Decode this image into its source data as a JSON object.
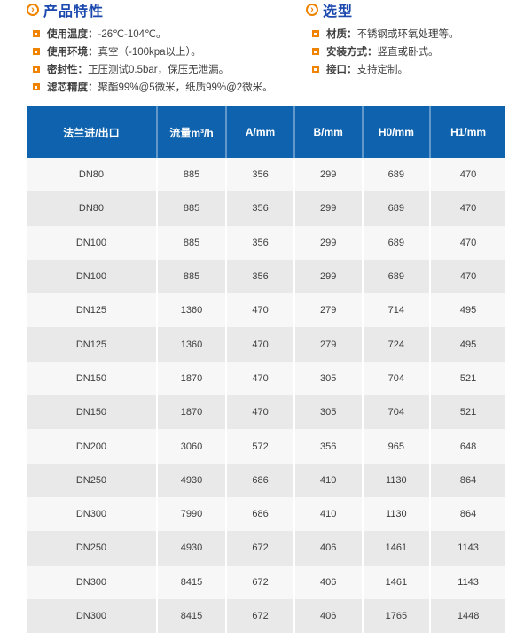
{
  "colors": {
    "accent_orange": "#f08300",
    "title_blue": "#1b49ae",
    "table_header_blue": "#0f62ad",
    "row_light": "#f7f7f7",
    "row_gray": "#e9e9e9",
    "body_text": "#404040"
  },
  "sections": [
    {
      "title": "产品特性",
      "items": [
        {
          "label": "使用温度：",
          "text": "-26℃-104℃。"
        },
        {
          "label": "使用环境：",
          "text": "真空（-100kpa以上）。"
        },
        {
          "label": "密封性：",
          "text": "正压测试0.5bar，保压无泄漏。"
        },
        {
          "label": "滤芯精度：",
          "text": "聚酯99%@5微米，纸质99%@2微米。"
        }
      ]
    },
    {
      "title": "选型",
      "items": [
        {
          "label": "材质：",
          "text": "不锈钢或环氧处理等。"
        },
        {
          "label": "安装方式：",
          "text": "竖直或卧式。"
        },
        {
          "label": "接口：",
          "text": "支持定制。"
        }
      ]
    }
  ],
  "table": {
    "headers": [
      "法兰进/出口",
      "流量m³/h",
      "A/mm",
      "B/mm",
      "H0/mm",
      "H1/mm"
    ],
    "rows": [
      [
        "DN80",
        "885",
        "356",
        "299",
        "689",
        "470"
      ],
      [
        "DN80",
        "885",
        "356",
        "299",
        "689",
        "470"
      ],
      [
        "DN100",
        "885",
        "356",
        "299",
        "689",
        "470"
      ],
      [
        "DN100",
        "885",
        "356",
        "299",
        "689",
        "470"
      ],
      [
        "DN125",
        "1360",
        "470",
        "279",
        "714",
        "495"
      ],
      [
        "DN125",
        "1360",
        "470",
        "279",
        "724",
        "495"
      ],
      [
        "DN150",
        "1870",
        "470",
        "305",
        "704",
        "521"
      ],
      [
        "DN150",
        "1870",
        "470",
        "305",
        "704",
        "521"
      ],
      [
        "DN200",
        "3060",
        "572",
        "356",
        "965",
        "648"
      ],
      [
        "DN250",
        "4930",
        "686",
        "410",
        "1130",
        "864"
      ],
      [
        "DN300",
        "7990",
        "686",
        "410",
        "1130",
        "864"
      ],
      [
        "DN250",
        "4930",
        "672",
        "406",
        "1461",
        "1143"
      ],
      [
        "DN300",
        "8415",
        "672",
        "406",
        "1461",
        "1143"
      ],
      [
        "DN300",
        "8415",
        "672",
        "406",
        "1765",
        "1448"
      ]
    ]
  }
}
